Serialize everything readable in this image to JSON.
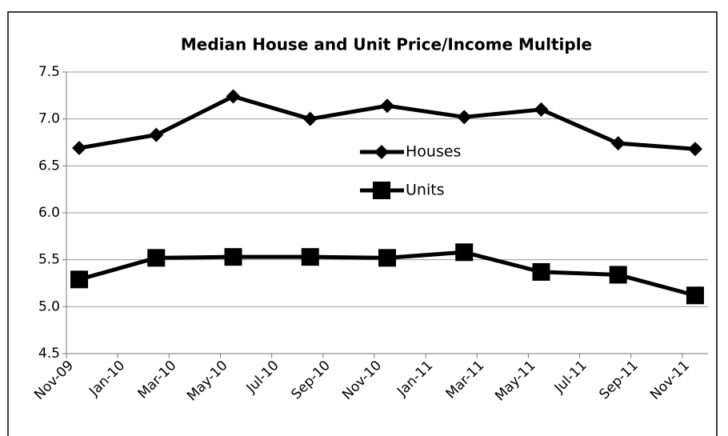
{
  "chart_data": {
    "type": "line",
    "title": "Median House and Unit Price/Income Multiple",
    "x": [
      "2009-11",
      "2010-02",
      "2010-05",
      "2010-08",
      "2010-11",
      "2011-02",
      "2011-05",
      "2011-08",
      "2011-11"
    ],
    "series": [
      {
        "name": "Houses",
        "color": "#000000",
        "marker": "diamond",
        "values": [
          6.69,
          6.83,
          7.24,
          7.0,
          7.14,
          7.02,
          7.1,
          6.74,
          6.68
        ]
      },
      {
        "name": "Units",
        "color": "#000000",
        "marker": "square",
        "values": [
          5.29,
          5.52,
          5.53,
          5.53,
          5.52,
          5.58,
          5.37,
          5.34,
          5.12
        ]
      }
    ],
    "xlim": [
      "2009-11",
      "2011-11"
    ],
    "xticks": [
      {
        "value": "2009-11",
        "label": "Nov-09"
      },
      {
        "value": "2010-01",
        "label": "Jan-10"
      },
      {
        "value": "2010-03",
        "label": "Mar-10"
      },
      {
        "value": "2010-05",
        "label": "May-10"
      },
      {
        "value": "2010-07",
        "label": "Jul-10"
      },
      {
        "value": "2010-09",
        "label": "Sep-10"
      },
      {
        "value": "2010-11",
        "label": "Nov-10"
      },
      {
        "value": "2011-01",
        "label": "Jan-11"
      },
      {
        "value": "2011-03",
        "label": "Mar-11"
      },
      {
        "value": "2011-05",
        "label": "May-11"
      },
      {
        "value": "2011-07",
        "label": "Jul-11"
      },
      {
        "value": "2011-09",
        "label": "Sep-11"
      },
      {
        "value": "2011-11",
        "label": "Nov-11"
      }
    ],
    "ylim": [
      4.5,
      7.5
    ],
    "yticks": [
      4.5,
      {
        "value": 5,
        "label": "5.0"
      },
      5.5,
      {
        "value": 6,
        "label": "6.0"
      },
      6.5,
      {
        "value": 7,
        "label": "7.0"
      },
      7.5
    ],
    "grid": true
  }
}
